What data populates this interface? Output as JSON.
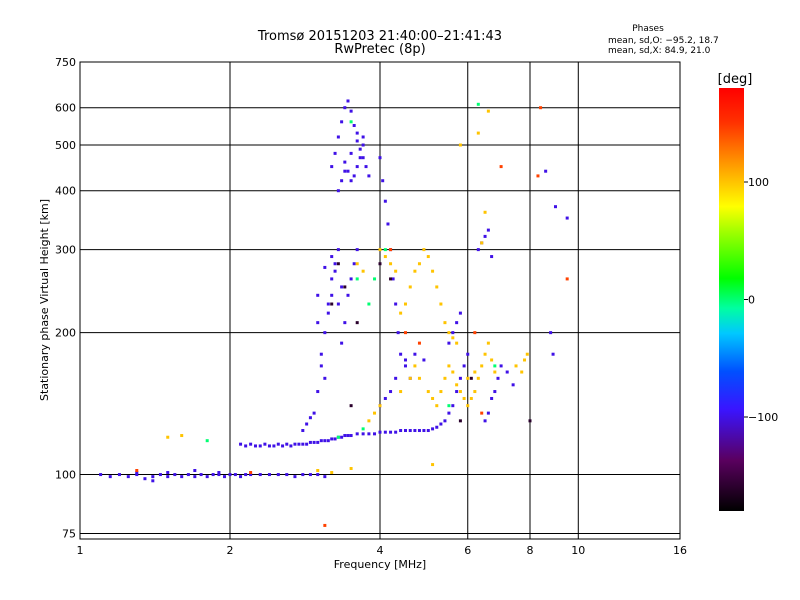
{
  "chart_data": {
    "type": "scatter",
    "title": "Tromsø 20151203 21:40:00–21:41:43",
    "subtitle": "RwPretec (8p)",
    "xlabel": "Frequency [MHz]",
    "ylabel": "Stationary phase Virtual Height [km]",
    "xscale": "log",
    "yscale": "log",
    "xlim": [
      1,
      16
    ],
    "ylim": [
      73,
      750
    ],
    "grid": true,
    "x_ticks": [
      1,
      2,
      4,
      6,
      8,
      10,
      16
    ],
    "x_tick_labels": [
      "1",
      "2",
      "4",
      "6",
      "8",
      "10",
      "16"
    ],
    "y_ticks": [
      75,
      100,
      200,
      300,
      400,
      500,
      600,
      750
    ],
    "y_tick_labels": [
      "75",
      "100",
      "200",
      "300",
      "400",
      "500",
      "600",
      "750"
    ],
    "phase_stats": {
      "header": "Phases",
      "line1": "mean, sd,O: −95.2, 18.7",
      "line2": "mean, sd,X: 84.9, 21.0"
    },
    "colorbar": {
      "label": "[deg]",
      "range": [
        -180,
        180
      ],
      "ticks": [
        -100,
        0,
        100
      ],
      "tick_labels": [
        "−100",
        "0",
        "100"
      ]
    },
    "series": [
      {
        "phase": -100,
        "points": [
          [
            1.1,
            100
          ],
          [
            1.15,
            99
          ],
          [
            1.2,
            100
          ],
          [
            1.25,
            99
          ],
          [
            1.3,
            100
          ],
          [
            1.35,
            98
          ],
          [
            1.4,
            99
          ],
          [
            1.45,
            100
          ],
          [
            1.5,
            99
          ],
          [
            1.55,
            100
          ],
          [
            1.6,
            99
          ],
          [
            1.65,
            100
          ],
          [
            1.7,
            99
          ],
          [
            1.75,
            100
          ],
          [
            1.8,
            99
          ],
          [
            1.85,
            100
          ],
          [
            1.9,
            100
          ],
          [
            1.95,
            99
          ],
          [
            2.0,
            100
          ],
          [
            2.05,
            100
          ],
          [
            2.1,
            99
          ],
          [
            2.15,
            100
          ],
          [
            2.2,
            100
          ],
          [
            2.3,
            100
          ],
          [
            2.4,
            100
          ],
          [
            2.5,
            100
          ],
          [
            2.6,
            100
          ],
          [
            2.7,
            99
          ],
          [
            2.8,
            100
          ],
          [
            2.9,
            100
          ],
          [
            3.0,
            100
          ],
          [
            3.1,
            99
          ],
          [
            1.3,
            101
          ],
          [
            1.4,
            97
          ],
          [
            1.5,
            101
          ],
          [
            1.7,
            102
          ],
          [
            1.9,
            101
          ],
          [
            2.1,
            116
          ],
          [
            2.15,
            115
          ],
          [
            2.2,
            116
          ],
          [
            2.25,
            115
          ],
          [
            2.3,
            115
          ],
          [
            2.35,
            116
          ],
          [
            2.4,
            115
          ],
          [
            2.45,
            115
          ],
          [
            2.5,
            116
          ],
          [
            2.55,
            115
          ],
          [
            2.6,
            116
          ],
          [
            2.65,
            115
          ],
          [
            2.7,
            116
          ],
          [
            2.75,
            116
          ],
          [
            2.8,
            116
          ],
          [
            2.85,
            116
          ],
          [
            2.9,
            117
          ],
          [
            2.95,
            117
          ],
          [
            3.0,
            117
          ],
          [
            3.05,
            118
          ],
          [
            3.1,
            118
          ],
          [
            3.15,
            118
          ],
          [
            3.2,
            119
          ],
          [
            3.25,
            119
          ],
          [
            3.3,
            120
          ],
          [
            3.35,
            120
          ],
          [
            3.4,
            121
          ],
          [
            3.45,
            121
          ],
          [
            3.5,
            121
          ],
          [
            3.6,
            122
          ],
          [
            3.7,
            122
          ],
          [
            3.8,
            122
          ],
          [
            3.9,
            122
          ],
          [
            4.0,
            123
          ],
          [
            4.1,
            123
          ],
          [
            4.2,
            123
          ],
          [
            4.3,
            123
          ],
          [
            4.4,
            124
          ],
          [
            4.5,
            124
          ],
          [
            4.6,
            124
          ],
          [
            4.7,
            124
          ],
          [
            4.8,
            124
          ],
          [
            4.9,
            124
          ],
          [
            2.8,
            124
          ],
          [
            2.85,
            128
          ],
          [
            2.9,
            132
          ],
          [
            2.95,
            135
          ],
          [
            3.0,
            150
          ],
          [
            3.05,
            170
          ],
          [
            3.1,
            200
          ],
          [
            3.15,
            230
          ],
          [
            3.2,
            260
          ],
          [
            3.25,
            280
          ],
          [
            3.3,
            300
          ],
          [
            3.35,
            250
          ],
          [
            3.0,
            210
          ],
          [
            3.05,
            180
          ],
          [
            3.1,
            160
          ],
          [
            3.15,
            220
          ],
          [
            3.2,
            240
          ],
          [
            3.25,
            270
          ],
          [
            3.3,
            230
          ],
          [
            3.35,
            190
          ],
          [
            3.4,
            210
          ],
          [
            3.45,
            240
          ],
          [
            3.5,
            260
          ],
          [
            3.55,
            280
          ],
          [
            3.6,
            300
          ],
          [
            3.0,
            240
          ],
          [
            3.1,
            275
          ],
          [
            3.2,
            290
          ],
          [
            3.2,
            450
          ],
          [
            3.25,
            480
          ],
          [
            3.3,
            520
          ],
          [
            3.35,
            560
          ],
          [
            3.4,
            600
          ],
          [
            3.45,
            620
          ],
          [
            3.5,
            590
          ],
          [
            3.55,
            550
          ],
          [
            3.6,
            510
          ],
          [
            3.65,
            490
          ],
          [
            3.7,
            470
          ],
          [
            3.75,
            450
          ],
          [
            3.8,
            430
          ],
          [
            3.4,
            460
          ],
          [
            3.45,
            440
          ],
          [
            3.5,
            420
          ],
          [
            3.55,
            430
          ],
          [
            3.6,
            450
          ],
          [
            3.65,
            470
          ],
          [
            3.7,
            500
          ],
          [
            3.3,
            400
          ],
          [
            3.35,
            420
          ],
          [
            3.4,
            440
          ],
          [
            3.5,
            480
          ],
          [
            3.6,
            530
          ],
          [
            3.7,
            520
          ],
          [
            4.0,
            470
          ],
          [
            4.05,
            420
          ],
          [
            4.1,
            380
          ],
          [
            4.15,
            340
          ],
          [
            4.2,
            300
          ],
          [
            4.25,
            260
          ],
          [
            4.3,
            230
          ],
          [
            4.35,
            200
          ],
          [
            4.4,
            180
          ],
          [
            4.5,
            170
          ],
          [
            4.6,
            160
          ],
          [
            4.0,
            140
          ],
          [
            4.1,
            145
          ],
          [
            4.2,
            150
          ],
          [
            4.3,
            160
          ],
          [
            4.5,
            175
          ],
          [
            4.7,
            180
          ],
          [
            4.9,
            175
          ],
          [
            5.0,
            124
          ],
          [
            5.1,
            125
          ],
          [
            5.2,
            126
          ],
          [
            5.3,
            128
          ],
          [
            5.4,
            130
          ],
          [
            5.5,
            135
          ],
          [
            5.6,
            140
          ],
          [
            5.7,
            150
          ],
          [
            5.8,
            160
          ],
          [
            5.9,
            170
          ],
          [
            6.0,
            180
          ],
          [
            5.5,
            190
          ],
          [
            5.6,
            200
          ],
          [
            5.7,
            210
          ],
          [
            5.8,
            220
          ],
          [
            6.5,
            130
          ],
          [
            6.6,
            135
          ],
          [
            6.7,
            145
          ],
          [
            6.8,
            150
          ],
          [
            6.9,
            160
          ],
          [
            7.0,
            170
          ],
          [
            7.2,
            165
          ],
          [
            7.4,
            155
          ],
          [
            6.3,
            300
          ],
          [
            6.4,
            310
          ],
          [
            6.5,
            320
          ],
          [
            6.6,
            330
          ],
          [
            6.7,
            290
          ],
          [
            8.6,
            440
          ],
          [
            9.0,
            370
          ],
          [
            9.5,
            350
          ],
          [
            8.8,
            200
          ],
          [
            8.9,
            180
          ]
        ]
      },
      {
        "phase": 0,
        "points": [
          [
            1.8,
            118
          ],
          [
            3.3,
            120
          ],
          [
            3.7,
            125
          ],
          [
            3.8,
            230
          ],
          [
            3.9,
            260
          ],
          [
            4.1,
            300
          ],
          [
            3.6,
            260
          ],
          [
            3.5,
            560
          ],
          [
            6.3,
            610
          ],
          [
            5.5,
            140
          ],
          [
            6.8,
            170
          ]
        ]
      },
      {
        "phase": 100,
        "points": [
          [
            1.5,
            120
          ],
          [
            1.6,
            121
          ],
          [
            3.8,
            130
          ],
          [
            3.9,
            135
          ],
          [
            4.0,
            140
          ],
          [
            4.4,
            150
          ],
          [
            4.6,
            160
          ],
          [
            4.7,
            170
          ],
          [
            4.8,
            160
          ],
          [
            5.0,
            150
          ],
          [
            5.1,
            145
          ],
          [
            5.2,
            140
          ],
          [
            5.3,
            150
          ],
          [
            5.4,
            160
          ],
          [
            5.5,
            170
          ],
          [
            5.6,
            165
          ],
          [
            5.7,
            155
          ],
          [
            5.8,
            150
          ],
          [
            5.9,
            145
          ],
          [
            6.0,
            140
          ],
          [
            6.1,
            145
          ],
          [
            6.2,
            150
          ],
          [
            6.3,
            160
          ],
          [
            6.4,
            170
          ],
          [
            6.5,
            180
          ],
          [
            6.6,
            190
          ],
          [
            6.7,
            175
          ],
          [
            6.8,
            165
          ],
          [
            4.4,
            220
          ],
          [
            4.5,
            230
          ],
          [
            4.6,
            250
          ],
          [
            4.7,
            270
          ],
          [
            4.8,
            280
          ],
          [
            4.9,
            300
          ],
          [
            5.0,
            290
          ],
          [
            5.1,
            270
          ],
          [
            5.2,
            250
          ],
          [
            5.3,
            230
          ],
          [
            5.4,
            210
          ],
          [
            5.5,
            200
          ],
          [
            5.6,
            195
          ],
          [
            5.7,
            190
          ],
          [
            4.0,
            300
          ],
          [
            4.1,
            290
          ],
          [
            4.2,
            280
          ],
          [
            4.3,
            270
          ],
          [
            3.7,
            270
          ],
          [
            3.6,
            280
          ],
          [
            6.5,
            360
          ],
          [
            6.6,
            590
          ],
          [
            6.3,
            530
          ],
          [
            5.8,
            500
          ],
          [
            6.4,
            310
          ],
          [
            7.5,
            170
          ],
          [
            7.7,
            165
          ],
          [
            7.8,
            175
          ],
          [
            7.9,
            180
          ],
          [
            6.0,
            160
          ],
          [
            6.2,
            165
          ],
          [
            3.0,
            102
          ],
          [
            3.2,
            101
          ],
          [
            3.5,
            103
          ],
          [
            5.1,
            105
          ]
        ]
      },
      {
        "phase": 145,
        "points": [
          [
            4.5,
            200
          ],
          [
            4.8,
            190
          ],
          [
            6.2,
            200
          ],
          [
            7.0,
            450
          ],
          [
            8.3,
            430
          ],
          [
            8.4,
            600
          ],
          [
            9.5,
            260
          ],
          [
            6.4,
            135
          ],
          [
            3.1,
            78
          ],
          [
            1.3,
            102
          ],
          [
            2.2,
            101
          ],
          [
            4.2,
            300
          ]
        ]
      },
      {
        "phase": -160,
        "points": [
          [
            3.2,
            230
          ],
          [
            3.4,
            250
          ],
          [
            3.6,
            210
          ],
          [
            3.3,
            280
          ],
          [
            4.0,
            280
          ],
          [
            4.2,
            260
          ],
          [
            5.8,
            130
          ],
          [
            6.1,
            160
          ],
          [
            8.0,
            130
          ],
          [
            3.5,
            140
          ]
        ]
      }
    ]
  }
}
